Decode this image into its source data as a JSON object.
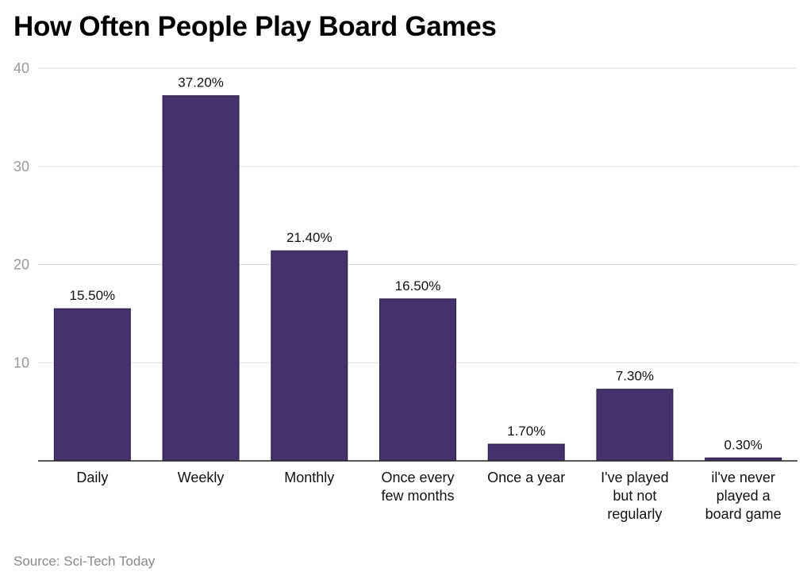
{
  "chart_data": {
    "type": "bar",
    "title": "How Often People Play Board Games",
    "source": "Source: Sci-Tech Today",
    "categories": [
      [
        "Daily"
      ],
      [
        "Weekly"
      ],
      [
        "Monthly"
      ],
      [
        "Once every",
        "few months"
      ],
      [
        "Once a year"
      ],
      [
        "I've played",
        "but not",
        "regularly"
      ],
      [
        "il've never",
        "played a",
        "board game"
      ]
    ],
    "values": [
      15.5,
      37.2,
      21.4,
      16.5,
      1.7,
      7.3,
      0.3
    ],
    "data_labels": [
      "15.50%",
      "37.20%",
      "21.40%",
      "16.50%",
      "1.70%",
      "7.30%",
      "0.30%"
    ],
    "xlabel": "",
    "ylabel": "",
    "ylim": [
      0,
      40
    ],
    "yticks": [
      10,
      20,
      30,
      40
    ],
    "grid": true,
    "bar_color": "#45316b"
  }
}
